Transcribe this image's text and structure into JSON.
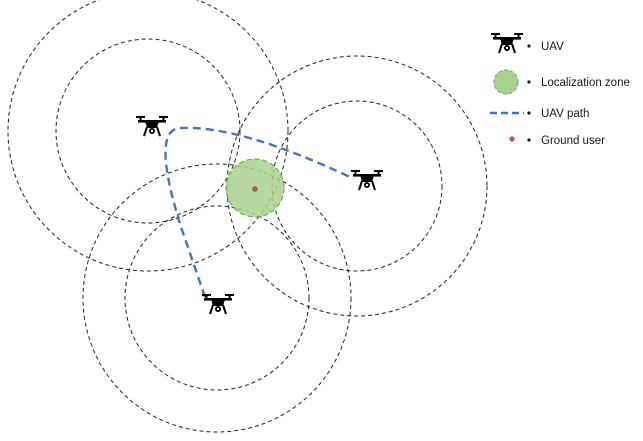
{
  "legend": {
    "items": [
      {
        "label": "UAV",
        "icon": "drone-icon"
      },
      {
        "label": "Localization zone",
        "icon": "green-circle-icon"
      },
      {
        "label": "UAV path",
        "icon": "dashed-line-icon"
      },
      {
        "label": "Ground user",
        "icon": "red-dot-icon"
      }
    ]
  },
  "colors": {
    "range_circle": "#222222",
    "zone_fill": "#a9d18e",
    "zone_stroke": "#70ad47",
    "path": "#4472c4",
    "ground_user": "#c0504d",
    "drone": "#000000"
  },
  "uavs": [
    {
      "id": "uav-1"
    },
    {
      "id": "uav-2"
    },
    {
      "id": "uav-3"
    }
  ]
}
